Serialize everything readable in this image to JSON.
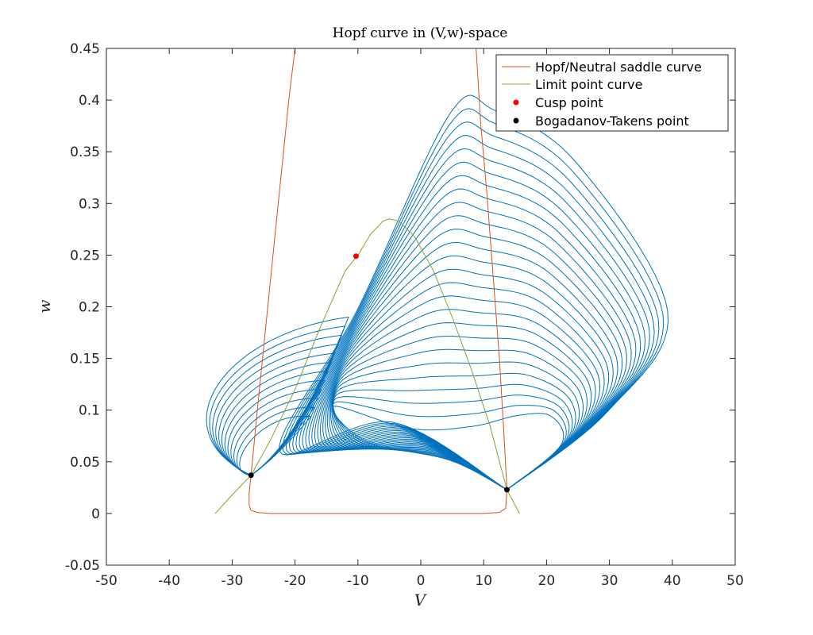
{
  "chart_data": {
    "type": "line",
    "title": "Hopf curve in (V,w)-space",
    "xlabel": "V",
    "ylabel": "w",
    "xlim": [
      -50,
      50
    ],
    "ylim": [
      -0.05,
      0.45
    ],
    "xticks": [
      -50,
      -40,
      -30,
      -20,
      -10,
      0,
      10,
      20,
      30,
      40,
      50
    ],
    "xtick_labels": [
      "-50",
      "-40",
      "-30",
      "-20",
      "-10",
      "0",
      "10",
      "20",
      "30",
      "40",
      "50"
    ],
    "yticks": [
      -0.05,
      0,
      0.05,
      0.1,
      0.15,
      0.2,
      0.25,
      0.3,
      0.35,
      0.4,
      0.45
    ],
    "ytick_labels": [
      "-0.05",
      "0",
      "0.05",
      "0.1",
      "0.15",
      "0.2",
      "0.25",
      "0.3",
      "0.35",
      "0.4",
      "0.45"
    ],
    "grid": false,
    "legend_position": "top-right",
    "colors": {
      "hopf": "#d95319",
      "limit_point": "#77ac30",
      "cusp": "#ff0000",
      "bt": "#000000",
      "cycles": "#0072bd"
    },
    "series": [
      {
        "name": "Hopf/Neutral saddle curve",
        "kind": "line",
        "points": [
          [
            -20.0,
            0.45
          ],
          [
            -21.0,
            0.4
          ],
          [
            -22.0,
            0.34
          ],
          [
            -23.0,
            0.28
          ],
          [
            -24.0,
            0.22
          ],
          [
            -25.0,
            0.16
          ],
          [
            -26.0,
            0.1
          ],
          [
            -27.0,
            0.037
          ],
          [
            -27.3,
            0.02
          ],
          [
            -27.3,
            0.008
          ],
          [
            -27.0,
            0.003
          ],
          [
            -26.0,
            0.001
          ],
          [
            -24.0,
            0.0
          ],
          [
            -10.0,
            0.0
          ],
          [
            0.0,
            0.0
          ],
          [
            10.0,
            0.0
          ],
          [
            12.5,
            0.001
          ],
          [
            13.5,
            0.005
          ],
          [
            13.7,
            0.023
          ],
          [
            13.2,
            0.08
          ],
          [
            12.5,
            0.15
          ],
          [
            11.5,
            0.23
          ],
          [
            10.5,
            0.31
          ],
          [
            9.5,
            0.38
          ],
          [
            8.8,
            0.45
          ]
        ]
      },
      {
        "name": "Limit point curve",
        "kind": "line",
        "points": [
          [
            -32.7,
            0.0
          ],
          [
            -30.0,
            0.018
          ],
          [
            -27.0,
            0.037
          ],
          [
            -24.0,
            0.07
          ],
          [
            -20.0,
            0.12
          ],
          [
            -16.0,
            0.18
          ],
          [
            -12.0,
            0.235
          ],
          [
            -10.0,
            0.25
          ],
          [
            -8.0,
            0.27
          ],
          [
            -6.0,
            0.283
          ],
          [
            -5.0,
            0.285
          ],
          [
            -3.5,
            0.283
          ],
          [
            -1.0,
            0.268
          ],
          [
            2.0,
            0.235
          ],
          [
            5.0,
            0.19
          ],
          [
            8.0,
            0.14
          ],
          [
            11.0,
            0.085
          ],
          [
            13.7,
            0.023
          ],
          [
            15.7,
            0.0
          ]
        ]
      },
      {
        "name": "Cusp point",
        "kind": "point",
        "points": [
          [
            -10.3,
            0.249
          ]
        ]
      },
      {
        "name": "Bogadanov-Takens point",
        "kind": "point",
        "points": [
          [
            -27.0,
            0.037
          ],
          [
            13.7,
            0.023
          ]
        ]
      }
    ],
    "limit_cycles": {
      "description_count": 38,
      "left_family_apex": [
        -27.0,
        0.037
      ],
      "left_family_outer": [
        [
          -27.0,
          0.037
        ],
        [
          -35.0,
          0.06
        ],
        [
          -40.0,
          0.1
        ],
        [
          -34.0,
          0.14
        ],
        [
          -22.0,
          0.175
        ],
        [
          -11.5,
          0.19
        ]
      ],
      "right_family_apex": [
        13.7,
        0.023
      ],
      "right_family_outer": [
        [
          13.7,
          0.023
        ],
        [
          -8.0,
          0.06
        ],
        [
          -19.0,
          0.13
        ],
        [
          -5.0,
          0.3
        ],
        [
          10.0,
          0.4
        ],
        [
          25.0,
          0.355
        ],
        [
          40.0,
          0.2
        ],
        [
          30.0,
          0.115
        ],
        [
          13.7,
          0.023
        ]
      ]
    }
  }
}
